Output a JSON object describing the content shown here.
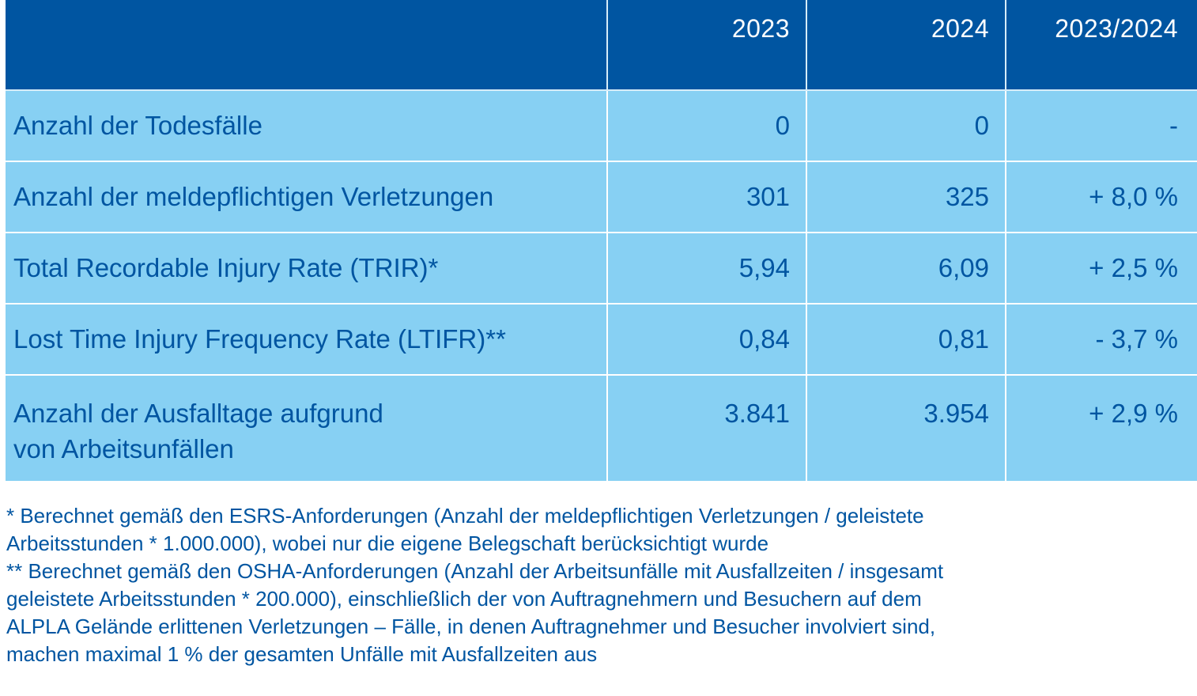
{
  "header": {
    "col_label": "",
    "col_2023": "2023",
    "col_2024": "2024",
    "col_change": "2023/2024"
  },
  "rows": [
    {
      "label": "Anzahl der Todesfälle",
      "v2023": "0",
      "v2024": "0",
      "change": "-"
    },
    {
      "label": "Anzahl der meldepflichtigen Verletzungen",
      "v2023": "301",
      "v2024": "325",
      "change": "+ 8,0 %"
    },
    {
      "label": "Total Recordable Injury Rate (TRIR)*",
      "v2023": "5,94",
      "v2024": "6,09",
      "change": "+ 2,5 %"
    },
    {
      "label": "Lost Time Injury Frequency Rate (LTIFR)**",
      "v2023": "0,84",
      "v2024": "0,81",
      "change": "- 3,7 %"
    },
    {
      "label_line1": "Anzahl der Ausfalltage aufgrund",
      "label_line2": "von Arbeitsunfällen",
      "v2023": "3.841",
      "v2024": "3.954",
      "change": "+ 2,9 %"
    }
  ],
  "footnotes": [
    "* Berechnet gemäß den ESRS-Anforderungen (Anzahl der meldepflichtigen Verletzungen / geleistete",
    "Arbeitsstunden * 1.000.000), wobei nur die eigene Belegschaft berücksichtigt wurde",
    "** Berechnet gemäß den OSHA-Anforderungen (Anzahl der Arbeitsunfälle mit Ausfallzeiten / insgesamt",
    "geleistete Arbeitsstunden * 200.000), einschließlich der von Auftragnehmern und Besuchern auf dem",
    "ALPLA Gelände erlittenen Verletzungen – Fälle, in denen Auftragnehmer und Besucher involviert sind,",
    "machen maximal 1 % der gesamten Unfälle mit Ausfallzeiten aus"
  ],
  "colors": {
    "header_bg": "#0055a1",
    "row_bg": "#87d0f3",
    "text": "#0055a1"
  }
}
